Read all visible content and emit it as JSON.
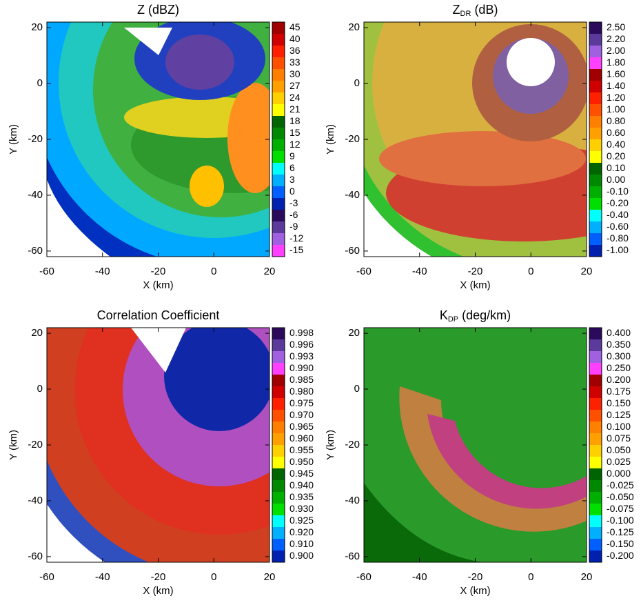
{
  "chart_data": [
    {
      "type": "radar-ppi",
      "title": "Z (dBZ)",
      "xlabel": "X (km)",
      "ylabel": "Y (km)",
      "xlim": [
        -60,
        20
      ],
      "ylim": [
        -62,
        22
      ],
      "xticks": [
        -60,
        -40,
        -20,
        0,
        20
      ],
      "yticks": [
        20,
        0,
        -20,
        -40,
        -60
      ],
      "cticks": [
        45,
        40,
        36,
        33,
        30,
        27,
        24,
        21,
        18,
        15,
        12,
        9,
        6,
        3,
        0,
        -3,
        -6,
        -9,
        -12,
        -15
      ],
      "colors": [
        "#a00000",
        "#d00000",
        "#ff2000",
        "#ff5000",
        "#ff8000",
        "#ffa000",
        "#ffd000",
        "#ffff00",
        "#006400",
        "#008800",
        "#00b000",
        "#00e000",
        "#00ffff",
        "#00b0ff",
        "#0060ff",
        "#0020b0",
        "#2b0a5c",
        "#5b3a9c",
        "#a060e0",
        "#ff40ff"
      ]
    },
    {
      "type": "radar-ppi",
      "title": "Z",
      "title_subscript": "DR",
      "title_suffix": "(dB)",
      "xlabel": "X (km)",
      "ylabel": "Y (km)",
      "xlim": [
        -60,
        20
      ],
      "ylim": [
        -62,
        22
      ],
      "xticks": [
        -60,
        -40,
        -20,
        0,
        20
      ],
      "yticks": [
        20,
        0,
        -20,
        -40,
        -60
      ],
      "cticks": [
        {
          "value": 2.5,
          "label": "2.50"
        },
        {
          "value": 2.2,
          "label": "2.20"
        },
        {
          "value": 2,
          "label": "2.00"
        },
        {
          "value": 1.8,
          "label": "1.80"
        },
        {
          "value": 1.6,
          "label": "1.60"
        },
        {
          "value": 1.4,
          "label": "1.40"
        },
        {
          "value": 1.2,
          "label": "1.20"
        },
        {
          "value": 1,
          "label": "1.00"
        },
        {
          "value": 0.8,
          "label": "0.80"
        },
        {
          "value": 0.6,
          "label": "0.60"
        },
        {
          "value": 0.4,
          "label": "0.40"
        },
        {
          "value": 0.2,
          "label": "0.20"
        },
        {
          "value": 0.1,
          "label": "0.10"
        },
        {
          "value": 0,
          "label": "0.00"
        },
        {
          "value": -0.1,
          "label": "-0.10"
        },
        {
          "value": -0.2,
          "label": "-0.20"
        },
        {
          "value": -0.4,
          "label": "-0.40"
        },
        {
          "value": -0.6,
          "label": "-0.60"
        },
        {
          "value": -0.8,
          "label": "-0.80"
        },
        {
          "value": -1,
          "label": "-1.00"
        }
      ],
      "colors": [
        "#2b0a5c",
        "#5b3a9c",
        "#a060e0",
        "#ff40ff",
        "#a00000",
        "#d00000",
        "#ff2000",
        "#ff5000",
        "#ff8000",
        "#ffa000",
        "#ffd000",
        "#ffff00",
        "#006400",
        "#008800",
        "#00b000",
        "#00e000",
        "#00ffff",
        "#00b0ff",
        "#0060ff",
        "#0020b0"
      ]
    },
    {
      "type": "radar-ppi",
      "title": "Correlation Coefficient",
      "xlabel": "X (km)",
      "ylabel": "Y (km)",
      "xlim": [
        -60,
        20
      ],
      "ylim": [
        -62,
        22
      ],
      "xticks": [
        -60,
        -40,
        -20,
        0,
        20
      ],
      "yticks": [
        20,
        0,
        -20,
        -40,
        -60
      ],
      "cticks": [
        0.998,
        0.996,
        0.993,
        {
          "value": 0.99,
          "label": "0.990"
        },
        0.985,
        {
          "value": 0.98,
          "label": "0.980"
        },
        0.975,
        {
          "value": 0.97,
          "label": "0.970"
        },
        0.965,
        {
          "value": 0.96,
          "label": "0.960"
        },
        0.955,
        {
          "value": 0.95,
          "label": "0.950"
        },
        0.945,
        {
          "value": 0.94,
          "label": "0.940"
        },
        0.935,
        {
          "value": 0.93,
          "label": "0.930"
        },
        0.925,
        {
          "value": 0.92,
          "label": "0.920"
        },
        {
          "value": 0.91,
          "label": "0.910"
        },
        {
          "value": 0.9,
          "label": "0.900"
        }
      ],
      "colors": [
        "#2b0a5c",
        "#5b3a9c",
        "#a060e0",
        "#ff40ff",
        "#a00000",
        "#d00000",
        "#ff2000",
        "#ff5000",
        "#ff8000",
        "#ffa000",
        "#ffd000",
        "#ffff00",
        "#006400",
        "#008800",
        "#00b000",
        "#00e000",
        "#00ffff",
        "#00b0ff",
        "#0060ff",
        "#0020b0"
      ]
    },
    {
      "type": "radar-ppi",
      "title": "K",
      "title_subscript": "DP",
      "title_suffix": "(deg/km)",
      "xlabel": "X (km)",
      "ylabel": "Y (km)",
      "xlim": [
        -60,
        20
      ],
      "ylim": [
        -62,
        22
      ],
      "xticks": [
        -60,
        -40,
        -20,
        0,
        20
      ],
      "yticks": [
        20,
        0,
        -20,
        -40,
        -60
      ],
      "cticks": [
        {
          "value": 0.4,
          "label": "0.400"
        },
        {
          "value": 0.35,
          "label": "0.350"
        },
        {
          "value": 0.3,
          "label": "0.300"
        },
        {
          "value": 0.25,
          "label": "0.250"
        },
        {
          "value": 0.2,
          "label": "0.200"
        },
        0.175,
        {
          "value": 0.15,
          "label": "0.150"
        },
        0.125,
        {
          "value": 0.1,
          "label": "0.100"
        },
        0.075,
        {
          "value": 0.05,
          "label": "0.050"
        },
        0.025,
        {
          "value": 0,
          "label": "0.000"
        },
        -0.025,
        {
          "value": -0.05,
          "label": "-0.050"
        },
        -0.075,
        {
          "value": -0.1,
          "label": "-0.100"
        },
        -0.125,
        {
          "value": -0.15,
          "label": "-0.150"
        },
        {
          "value": -0.2,
          "label": "-0.200"
        }
      ],
      "colors": [
        "#2b0a5c",
        "#5b3a9c",
        "#a060e0",
        "#ff40ff",
        "#a00000",
        "#d00000",
        "#ff2000",
        "#ff5000",
        "#ff8000",
        "#ffa000",
        "#ffd000",
        "#ffff00",
        "#006400",
        "#008800",
        "#00b000",
        "#00e000",
        "#00ffff",
        "#00b0ff",
        "#0060ff",
        "#0020b0"
      ]
    }
  ]
}
